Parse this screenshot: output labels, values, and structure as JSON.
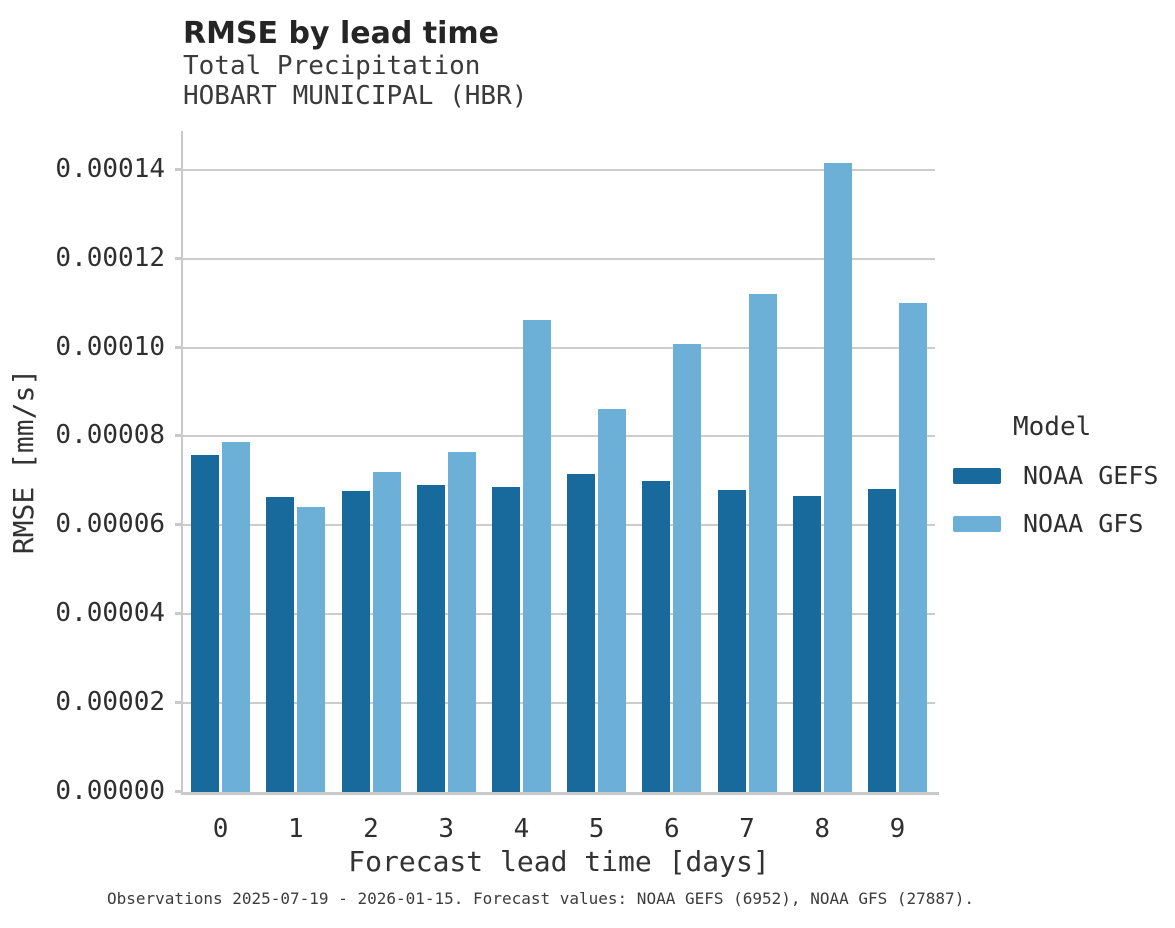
{
  "header": {
    "title": "RMSE by lead time",
    "subtitle_line1": "Total Precipitation",
    "subtitle_line2": "HOBART MUNICIPAL (HBR)"
  },
  "chart_data": {
    "type": "bar",
    "title": "RMSE by lead time",
    "subtitle": [
      "Total Precipitation",
      "HOBART MUNICIPAL (HBR)"
    ],
    "categories": [
      "0",
      "1",
      "2",
      "3",
      "4",
      "5",
      "6",
      "7",
      "8",
      "9"
    ],
    "series": [
      {
        "name": "NOAA GEFS",
        "color": "#186a9c",
        "values": [
          7.59e-05,
          6.64e-05,
          6.78e-05,
          6.9e-05,
          6.87e-05,
          7.15e-05,
          7e-05,
          6.79e-05,
          6.66e-05,
          6.81e-05
        ]
      },
      {
        "name": "NOAA GFS",
        "color": "#6cb0d8",
        "values": [
          7.87e-05,
          6.42e-05,
          7.19e-05,
          7.65e-05,
          0.0001062,
          8.62e-05,
          0.0001008,
          0.000112,
          0.0001414,
          0.00011
        ]
      }
    ],
    "xlabel": "Forecast lead time [days]",
    "ylabel": "RMSE [mm/s]",
    "ylim": [
      0,
      0.00014
    ],
    "ytick_step": 2e-05,
    "ytick_labels": [
      "0.00000",
      "0.00002",
      "0.00004",
      "0.00006",
      "0.00008",
      "0.00010",
      "0.00012",
      "0.00014"
    ],
    "grid": "horizontal-only",
    "legend": {
      "title": "Model",
      "position": "right",
      "entries": [
        "NOAA GEFS",
        "NOAA GFS"
      ]
    }
  },
  "colors": {
    "gefs_bar": "#186a9c",
    "gfs_bar": "#6cb0d8",
    "gridline": "#cccccc",
    "spine": "#c9c9c9"
  },
  "footer": {
    "caption": "Observations 2025-07-19 - 2026-01-15. Forecast values: NOAA GEFS (6952), NOAA GFS (27887)."
  }
}
